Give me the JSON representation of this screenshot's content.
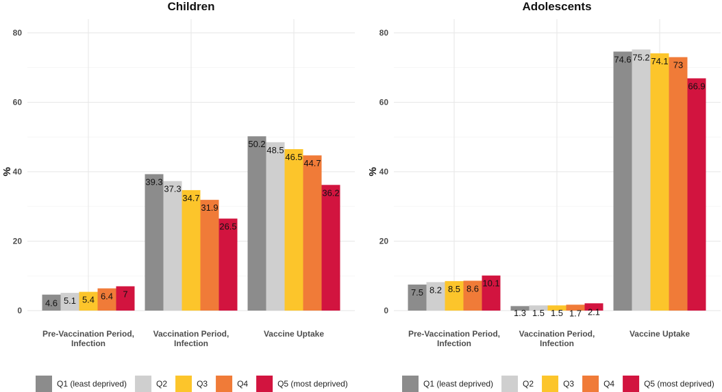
{
  "colors": {
    "Q1": "#8c8c8c",
    "Q2": "#cfcfcf",
    "Q3": "#fcc52b",
    "Q4": "#f07b38",
    "Q5": "#d2143f"
  },
  "legend": [
    {
      "key": "Q1",
      "label": "Q1 (least deprived)"
    },
    {
      "key": "Q2",
      "label": "Q2"
    },
    {
      "key": "Q3",
      "label": "Q3"
    },
    {
      "key": "Q4",
      "label": "Q4"
    },
    {
      "key": "Q5",
      "label": "Q5 (most deprived)"
    }
  ],
  "chart_data": [
    {
      "type": "bar",
      "title": "Children",
      "xlabel": "",
      "ylabel": "%",
      "ylim": [
        0,
        80
      ],
      "yticks": [
        0,
        20,
        40,
        60,
        80
      ],
      "grid": true,
      "legend_position": "bottom",
      "categories": [
        [
          "Pre-Vaccination Period,",
          "Infection"
        ],
        [
          "Vaccination Period,",
          "Infection"
        ],
        [
          "Vaccine Uptake"
        ]
      ],
      "series": [
        {
          "name": "Q1 (least deprived)",
          "key": "Q1",
          "values": [
            4.6,
            39.3,
            50.2
          ],
          "labels": [
            "4.6",
            "39.3",
            "50.2"
          ]
        },
        {
          "name": "Q2",
          "key": "Q2",
          "values": [
            5.1,
            37.3,
            48.5
          ],
          "labels": [
            "5.1",
            "37.3",
            "48.5"
          ]
        },
        {
          "name": "Q3",
          "key": "Q3",
          "values": [
            5.4,
            34.7,
            46.5
          ],
          "labels": [
            "5.4",
            "34.7",
            "46.5"
          ]
        },
        {
          "name": "Q4",
          "key": "Q4",
          "values": [
            6.4,
            31.9,
            44.7
          ],
          "labels": [
            "6.4",
            "31.9",
            "44.7"
          ]
        },
        {
          "name": "Q5 (most deprived)",
          "key": "Q5",
          "values": [
            7,
            26.5,
            36.2
          ],
          "labels": [
            "7",
            "26.5",
            "36.2"
          ]
        }
      ]
    },
    {
      "type": "bar",
      "title": "Adolescents",
      "xlabel": "",
      "ylabel": "%",
      "ylim": [
        0,
        80
      ],
      "yticks": [
        0,
        20,
        40,
        60,
        80
      ],
      "grid": true,
      "legend_position": "bottom",
      "categories": [
        [
          "Pre-Vaccination Period,",
          "Infection"
        ],
        [
          "Vaccination Period,",
          "Infection"
        ],
        [
          "Vaccine Uptake"
        ]
      ],
      "series": [
        {
          "name": "Q1 (least deprived)",
          "key": "Q1",
          "values": [
            7.5,
            1.3,
            74.6
          ],
          "labels": [
            "7.5",
            "1.3",
            "74.6"
          ]
        },
        {
          "name": "Q2",
          "key": "Q2",
          "values": [
            8.2,
            1.5,
            75.2
          ],
          "labels": [
            "8.2",
            "1.5",
            "75.2"
          ]
        },
        {
          "name": "Q3",
          "key": "Q3",
          "values": [
            8.5,
            1.5,
            74.1
          ],
          "labels": [
            "8.5",
            "1.5",
            "74.1"
          ]
        },
        {
          "name": "Q4",
          "key": "Q4",
          "values": [
            8.6,
            1.7,
            73
          ],
          "labels": [
            "8.6",
            "1.7",
            "73"
          ]
        },
        {
          "name": "Q5 (most deprived)",
          "key": "Q5",
          "values": [
            10.1,
            2.1,
            66.9
          ],
          "labels": [
            "10.1",
            "2.1",
            "66.9"
          ]
        }
      ]
    }
  ]
}
